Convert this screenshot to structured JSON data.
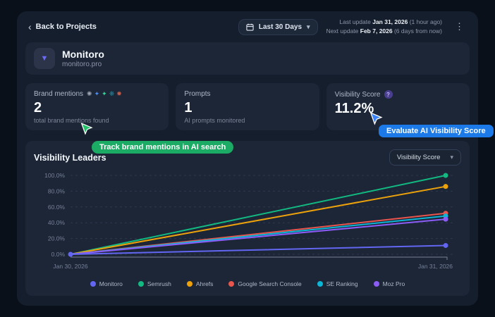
{
  "topbar": {
    "back_label": "Back to Projects",
    "date_range_label": "Last 30 Days",
    "updates": {
      "last_prefix": "Last update ",
      "last_date": "Jan 31, 2026",
      "last_suffix": " (1 hour ago)",
      "next_prefix": "Next update ",
      "next_date": "Feb 7, 2026",
      "next_suffix": " (6 days from now)"
    }
  },
  "project": {
    "name": "Monitoro",
    "domain": "monitoro.pro"
  },
  "stats": {
    "brand_mentions": {
      "label": "Brand mentions",
      "value": "2",
      "description": "total brand mentions found",
      "platform_icons": [
        {
          "name": "openai-icon",
          "glyph": "✺",
          "color": "#9ca3af"
        },
        {
          "name": "gemini-icon",
          "glyph": "✦",
          "color": "#4b8df8"
        },
        {
          "name": "ai-sparkle-icon",
          "glyph": "✦",
          "color": "#34d399"
        },
        {
          "name": "perplexity-icon",
          "glyph": "❋",
          "color": "#2d7d8f"
        },
        {
          "name": "claude-icon",
          "glyph": "✹",
          "color": "#c05b4a"
        }
      ]
    },
    "prompts": {
      "label": "Prompts",
      "value": "1",
      "description": "AI prompts monitored"
    },
    "visibility_score": {
      "label": "Visibility Score",
      "help_glyph": "?",
      "value": "11.2%"
    }
  },
  "annotations": {
    "green_label": "Track brand mentions in AI search",
    "blue_label": "Evaluate AI Visibility Score",
    "green_cursor_color": "#25c168",
    "blue_cursor_color": "#3b82f6"
  },
  "chart_section": {
    "title": "Visibility Leaders",
    "metric_dropdown_value": "Visibility Score"
  },
  "chart_data": {
    "type": "line",
    "title": "Visibility Leaders",
    "x": [
      "Jan 30, 2026",
      "Jan 31, 2026"
    ],
    "series": [
      {
        "name": "Semrush",
        "color": "#12b981",
        "values": [
          0,
          100
        ]
      },
      {
        "name": "Ahrefs",
        "color": "#eda20c",
        "values": [
          0,
          86
        ]
      },
      {
        "name": "Google Search Console",
        "color": "#e8554d",
        "values": [
          0,
          52
        ]
      },
      {
        "name": "SE Ranking",
        "color": "#0cb6d4",
        "values": [
          0,
          48.5
        ]
      },
      {
        "name": "Moz Pro",
        "color": "#8b5cf6",
        "values": [
          0,
          44.5
        ]
      },
      {
        "name": "Monitoro",
        "color": "#6366f1",
        "values": [
          0,
          11.2
        ]
      }
    ],
    "legend_order": [
      "Monitoro",
      "Semrush",
      "Ahrefs",
      "Google Search Console",
      "SE Ranking",
      "Moz Pro"
    ],
    "ylim": [
      0,
      100
    ],
    "yticks": [
      "0.0%",
      "20.0%",
      "40.0%",
      "60.0%",
      "80.0%",
      "100.0%"
    ],
    "grid": "dashed-horizontal",
    "legend_position": "bottom"
  }
}
